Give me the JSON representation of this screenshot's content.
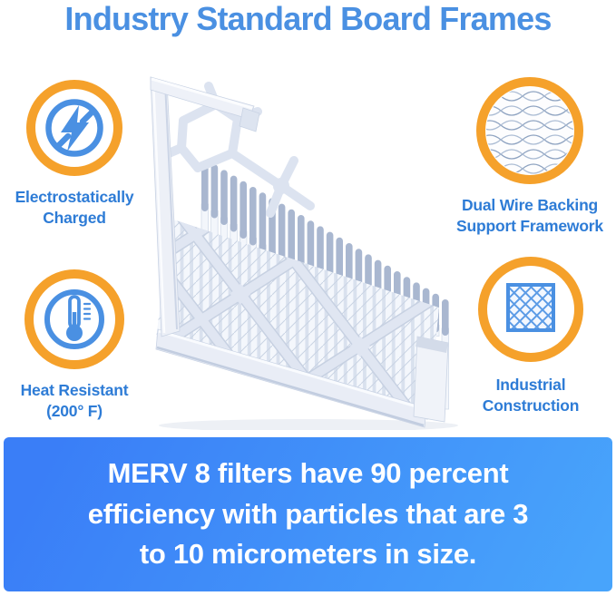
{
  "title": "Industry Standard Board Frames",
  "features": [
    {
      "id": "electrostatic",
      "icon": "lightning-bolt-icon",
      "label_line1": "Electrostatically",
      "label_line2": "Charged"
    },
    {
      "id": "dual-wire",
      "icon": "wire-mesh-photo",
      "label_line1": "Dual Wire Backing",
      "label_line2": "Support Framework"
    },
    {
      "id": "heat-resistant",
      "icon": "thermometer-icon",
      "label_line1": "Heat Resistant",
      "label_line2": "(200° F)"
    },
    {
      "id": "industrial",
      "icon": "diamond-lattice-icon",
      "label_line1": "Industrial",
      "label_line2": "Construction"
    }
  ],
  "illustration": {
    "name": "pleated-air-filter-3d-render"
  },
  "banner": {
    "line1": "MERV 8 filters have 90 percent",
    "line2": "efficiency with particles that are 3",
    "line3": "to 10 micrometers in size."
  },
  "colors": {
    "title_blue": "#4a90e2",
    "caption_blue": "#2e7cd6",
    "ring_orange": "#f5a12b",
    "icon_blue": "#4a90e2",
    "banner_gradient_start": "#3a7ef7",
    "banner_gradient_end": "#48a4fb",
    "banner_text": "#ffffff",
    "filter_body": "#e9edf6",
    "pleat_cap": "#a9b7d0"
  }
}
